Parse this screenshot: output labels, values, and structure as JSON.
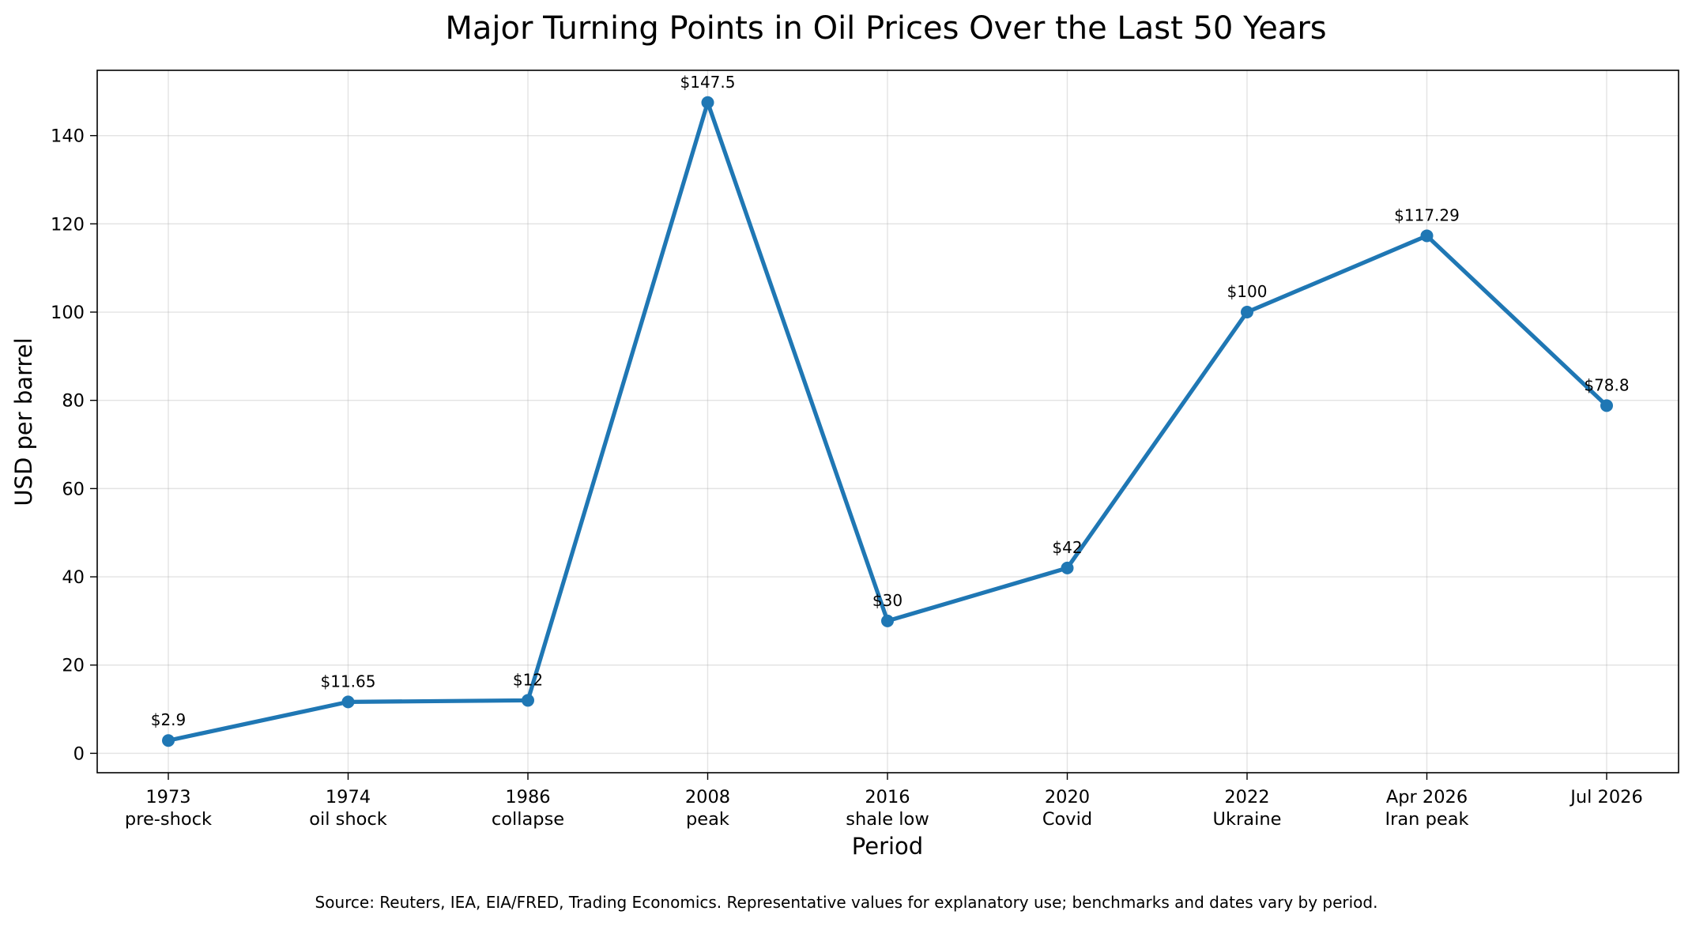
{
  "chart_data": {
    "type": "line",
    "title": "Major Turning Points in Oil Prices Over the Last 50 Years",
    "xlabel": "Period",
    "ylabel": "USD per barrel",
    "categories": [
      [
        "1973",
        "pre-shock"
      ],
      [
        "1974",
        "oil shock"
      ],
      [
        "1986",
        "collapse"
      ],
      [
        "2008",
        "peak"
      ],
      [
        "2016",
        "shale low"
      ],
      [
        "2020",
        "Covid"
      ],
      [
        "2022",
        "Ukraine"
      ],
      [
        "Apr 2026",
        "Iran peak"
      ],
      [
        "Jul 2026"
      ]
    ],
    "values": [
      2.9,
      11.65,
      12,
      147.5,
      30,
      42,
      100,
      117.29,
      78.8
    ],
    "data_labels": [
      "$2.9",
      "$11.65",
      "$12",
      "$147.5",
      "$30",
      "$42",
      "$100",
      "$117.29",
      "$78.8"
    ],
    "yticks": [
      0,
      20,
      40,
      60,
      80,
      100,
      120,
      140
    ],
    "ylim": [
      -4.4,
      154.8
    ],
    "grid": true,
    "line_color": "#1f77b4",
    "source": "Source: Reuters, IEA, EIA/FRED, Trading Economics. Representative values for explanatory use; benchmarks and dates vary by period."
  }
}
